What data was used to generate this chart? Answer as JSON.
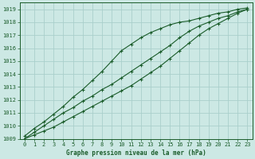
{
  "title": "Graphe pression niveau de la mer (hPa)",
  "bg_color": "#cce8e4",
  "grid_color": "#aacfcb",
  "line_color": "#1a5c2a",
  "xlim": [
    -0.5,
    23.5
  ],
  "ylim": [
    1009,
    1019.5
  ],
  "xticks": [
    0,
    1,
    2,
    3,
    4,
    5,
    6,
    7,
    8,
    9,
    10,
    11,
    12,
    13,
    14,
    15,
    16,
    17,
    18,
    19,
    20,
    21,
    22,
    23
  ],
  "yticks": [
    1009,
    1010,
    1011,
    1012,
    1013,
    1014,
    1015,
    1016,
    1017,
    1018,
    1019
  ],
  "series1": [
    1009.2,
    1009.8,
    1010.3,
    1010.9,
    1011.5,
    1012.2,
    1012.8,
    1013.5,
    1014.2,
    1015.0,
    1015.8,
    1016.3,
    1016.8,
    1017.2,
    1017.5,
    1017.8,
    1018.0,
    1018.1,
    1018.3,
    1018.5,
    1018.7,
    1018.8,
    1019.0,
    1019.1
  ],
  "series2": [
    1009.0,
    1009.5,
    1010.0,
    1010.5,
    1011.0,
    1011.4,
    1011.9,
    1012.3,
    1012.8,
    1013.2,
    1013.7,
    1014.2,
    1014.7,
    1015.2,
    1015.7,
    1016.2,
    1016.8,
    1017.3,
    1017.7,
    1018.0,
    1018.3,
    1018.5,
    1018.8,
    1019.0
  ],
  "series3": [
    1009.0,
    1009.3,
    1009.6,
    1009.9,
    1010.3,
    1010.7,
    1011.1,
    1011.5,
    1011.9,
    1012.3,
    1012.7,
    1013.1,
    1013.6,
    1014.1,
    1014.6,
    1015.2,
    1015.8,
    1016.4,
    1017.0,
    1017.5,
    1017.9,
    1018.3,
    1018.7,
    1019.0
  ],
  "title_fontsize": 5.5,
  "tick_fontsize": 5,
  "marker": "+",
  "markersize": 3.5,
  "linewidth": 0.8
}
